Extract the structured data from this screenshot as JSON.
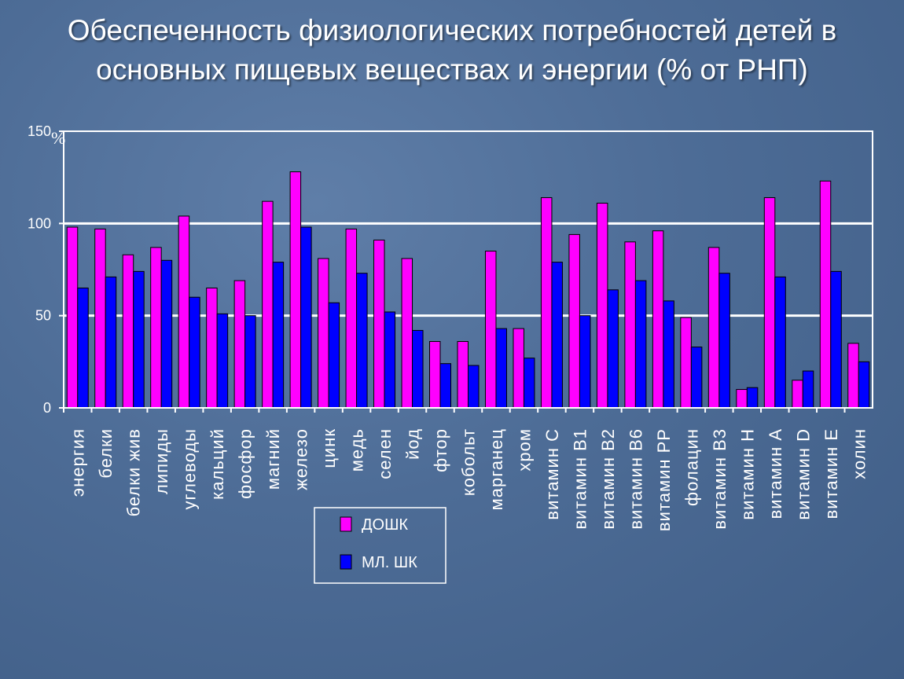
{
  "title_lines": [
    "Обеспеченность физиологических потребностей детей в",
    "основных пищевых веществах и энергии (% от РНП)"
  ],
  "chart_data": {
    "type": "bar",
    "unit_label": "%",
    "categories": [
      "энергия",
      "белки",
      "белки жив",
      "липиды",
      "углеводы",
      "кальций",
      "фосфор",
      "магний",
      "железо",
      "цинк",
      "медь",
      "селен",
      "йод",
      "фтор",
      "кобольт",
      "марганец",
      "хром",
      "витамин С",
      "витамин В1",
      "витамин В2",
      "витамин В6",
      "витамин РР",
      "фолацин",
      "витамин В3",
      "витамин Н",
      "витамин А",
      "витамин D",
      "витамин Е",
      "холин"
    ],
    "series": [
      {
        "name": "ДОШК",
        "color": "#ff00ff",
        "values": [
          98,
          97,
          83,
          87,
          104,
          65,
          69,
          112,
          128,
          81,
          97,
          91,
          81,
          36,
          36,
          85,
          43,
          114,
          94,
          111,
          90,
          96,
          49,
          87,
          10,
          114,
          15,
          123,
          35
        ]
      },
      {
        "name": "МЛ. ШК",
        "color": "#0000ff",
        "values": [
          65,
          71,
          74,
          80,
          60,
          51,
          50,
          79,
          98,
          57,
          73,
          52,
          42,
          24,
          23,
          43,
          27,
          79,
          50,
          64,
          69,
          58,
          33,
          73,
          11,
          71,
          20,
          74,
          25
        ]
      }
    ],
    "y_ticks": [
      0,
      50,
      100,
      150
    ],
    "ylim": [
      0,
      150
    ],
    "grid": true,
    "legend_position": "bottom-center",
    "colors": {
      "plot_border": "#ffffff",
      "gridline": "#ffffff",
      "bar_outline": "#000000"
    }
  }
}
